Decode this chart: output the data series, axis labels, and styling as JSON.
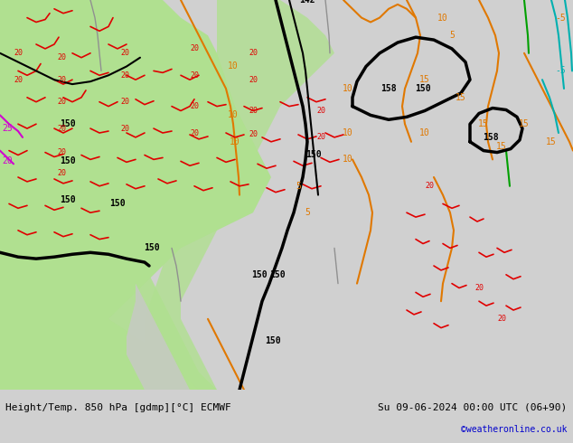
{
  "title_left": "Height/Temp. 850 hPa [gdmp][°C] ECMWF",
  "title_right": "Su 09-06-2024 00:00 UTC (06+90)",
  "credit": "©weatheronline.co.uk",
  "bg_color": "#d0d0d0",
  "land_green_color": "#b0e090",
  "land_gray_color": "#c8c8c8",
  "sea_color": "#e8e8e8",
  "contour_black_color": "#000000",
  "contour_orange_color": "#e07800",
  "contour_red_color": "#e00000",
  "contour_magenta_color": "#d000d0",
  "contour_green_color": "#00a000",
  "contour_cyan_color": "#00b0b0",
  "label_black": "#000000",
  "label_orange": "#e07800",
  "label_red": "#cc0000",
  "label_magenta": "#cc00cc",
  "figsize": [
    6.34,
    4.9
  ],
  "dpi": 100
}
